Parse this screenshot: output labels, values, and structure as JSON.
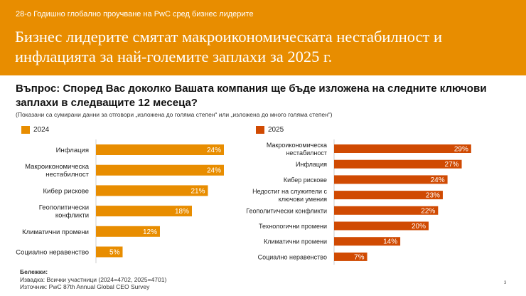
{
  "header": {
    "kicker": "28-о Годишно глобално проучване на PwC сред бизнес лидерите",
    "title": "Бизнес лидерите смятат макроикономическата нестабилност и инфлацията за най-големите заплахи за 2025 г."
  },
  "question": "Въпрос: Според Вас доколко Вашата компания ще бъде изложена на следните ключови заплахи в следващите 12 месеца?",
  "subquestion": "(Показани са сумирани данни за отговори „изложена до голяма степен“ или „изложена до много голяма степен“)",
  "notes": {
    "heading": "Бележки:",
    "sample": "Извадка: Всички участници (2024=4702, 2025=4701)",
    "source": "Източник: PwC 87th Annual Global CEO Survey"
  },
  "page_number": "3",
  "chart_data": [
    {
      "type": "bar",
      "orientation": "horizontal",
      "legend": "2024",
      "color": "#E88D00",
      "unit": "%",
      "categories": [
        [
          "Инфлация"
        ],
        [
          "Макроикономическа",
          "нестабилност"
        ],
        [
          "Кибер рискове"
        ],
        [
          "Геополитически",
          "конфликти"
        ],
        [
          "Климатични промени"
        ],
        [
          "Социално неравенство"
        ]
      ],
      "values": [
        24,
        24,
        21,
        18,
        12,
        5
      ]
    },
    {
      "type": "bar",
      "orientation": "horizontal",
      "legend": "2025",
      "color": "#D04A02",
      "unit": "%",
      "categories": [
        [
          "Макроикономическа",
          "нестабилност"
        ],
        [
          "Инфлация"
        ],
        [
          "Кибер рискове"
        ],
        [
          "Недостиг на служители с",
          "ключови умения"
        ],
        [
          "Геополитически конфликти"
        ],
        [
          "Технологични промени"
        ],
        [
          "Климатични промени"
        ],
        [
          "Социално неравенство"
        ]
      ],
      "values": [
        29,
        27,
        24,
        23,
        22,
        20,
        14,
        7
      ]
    }
  ]
}
